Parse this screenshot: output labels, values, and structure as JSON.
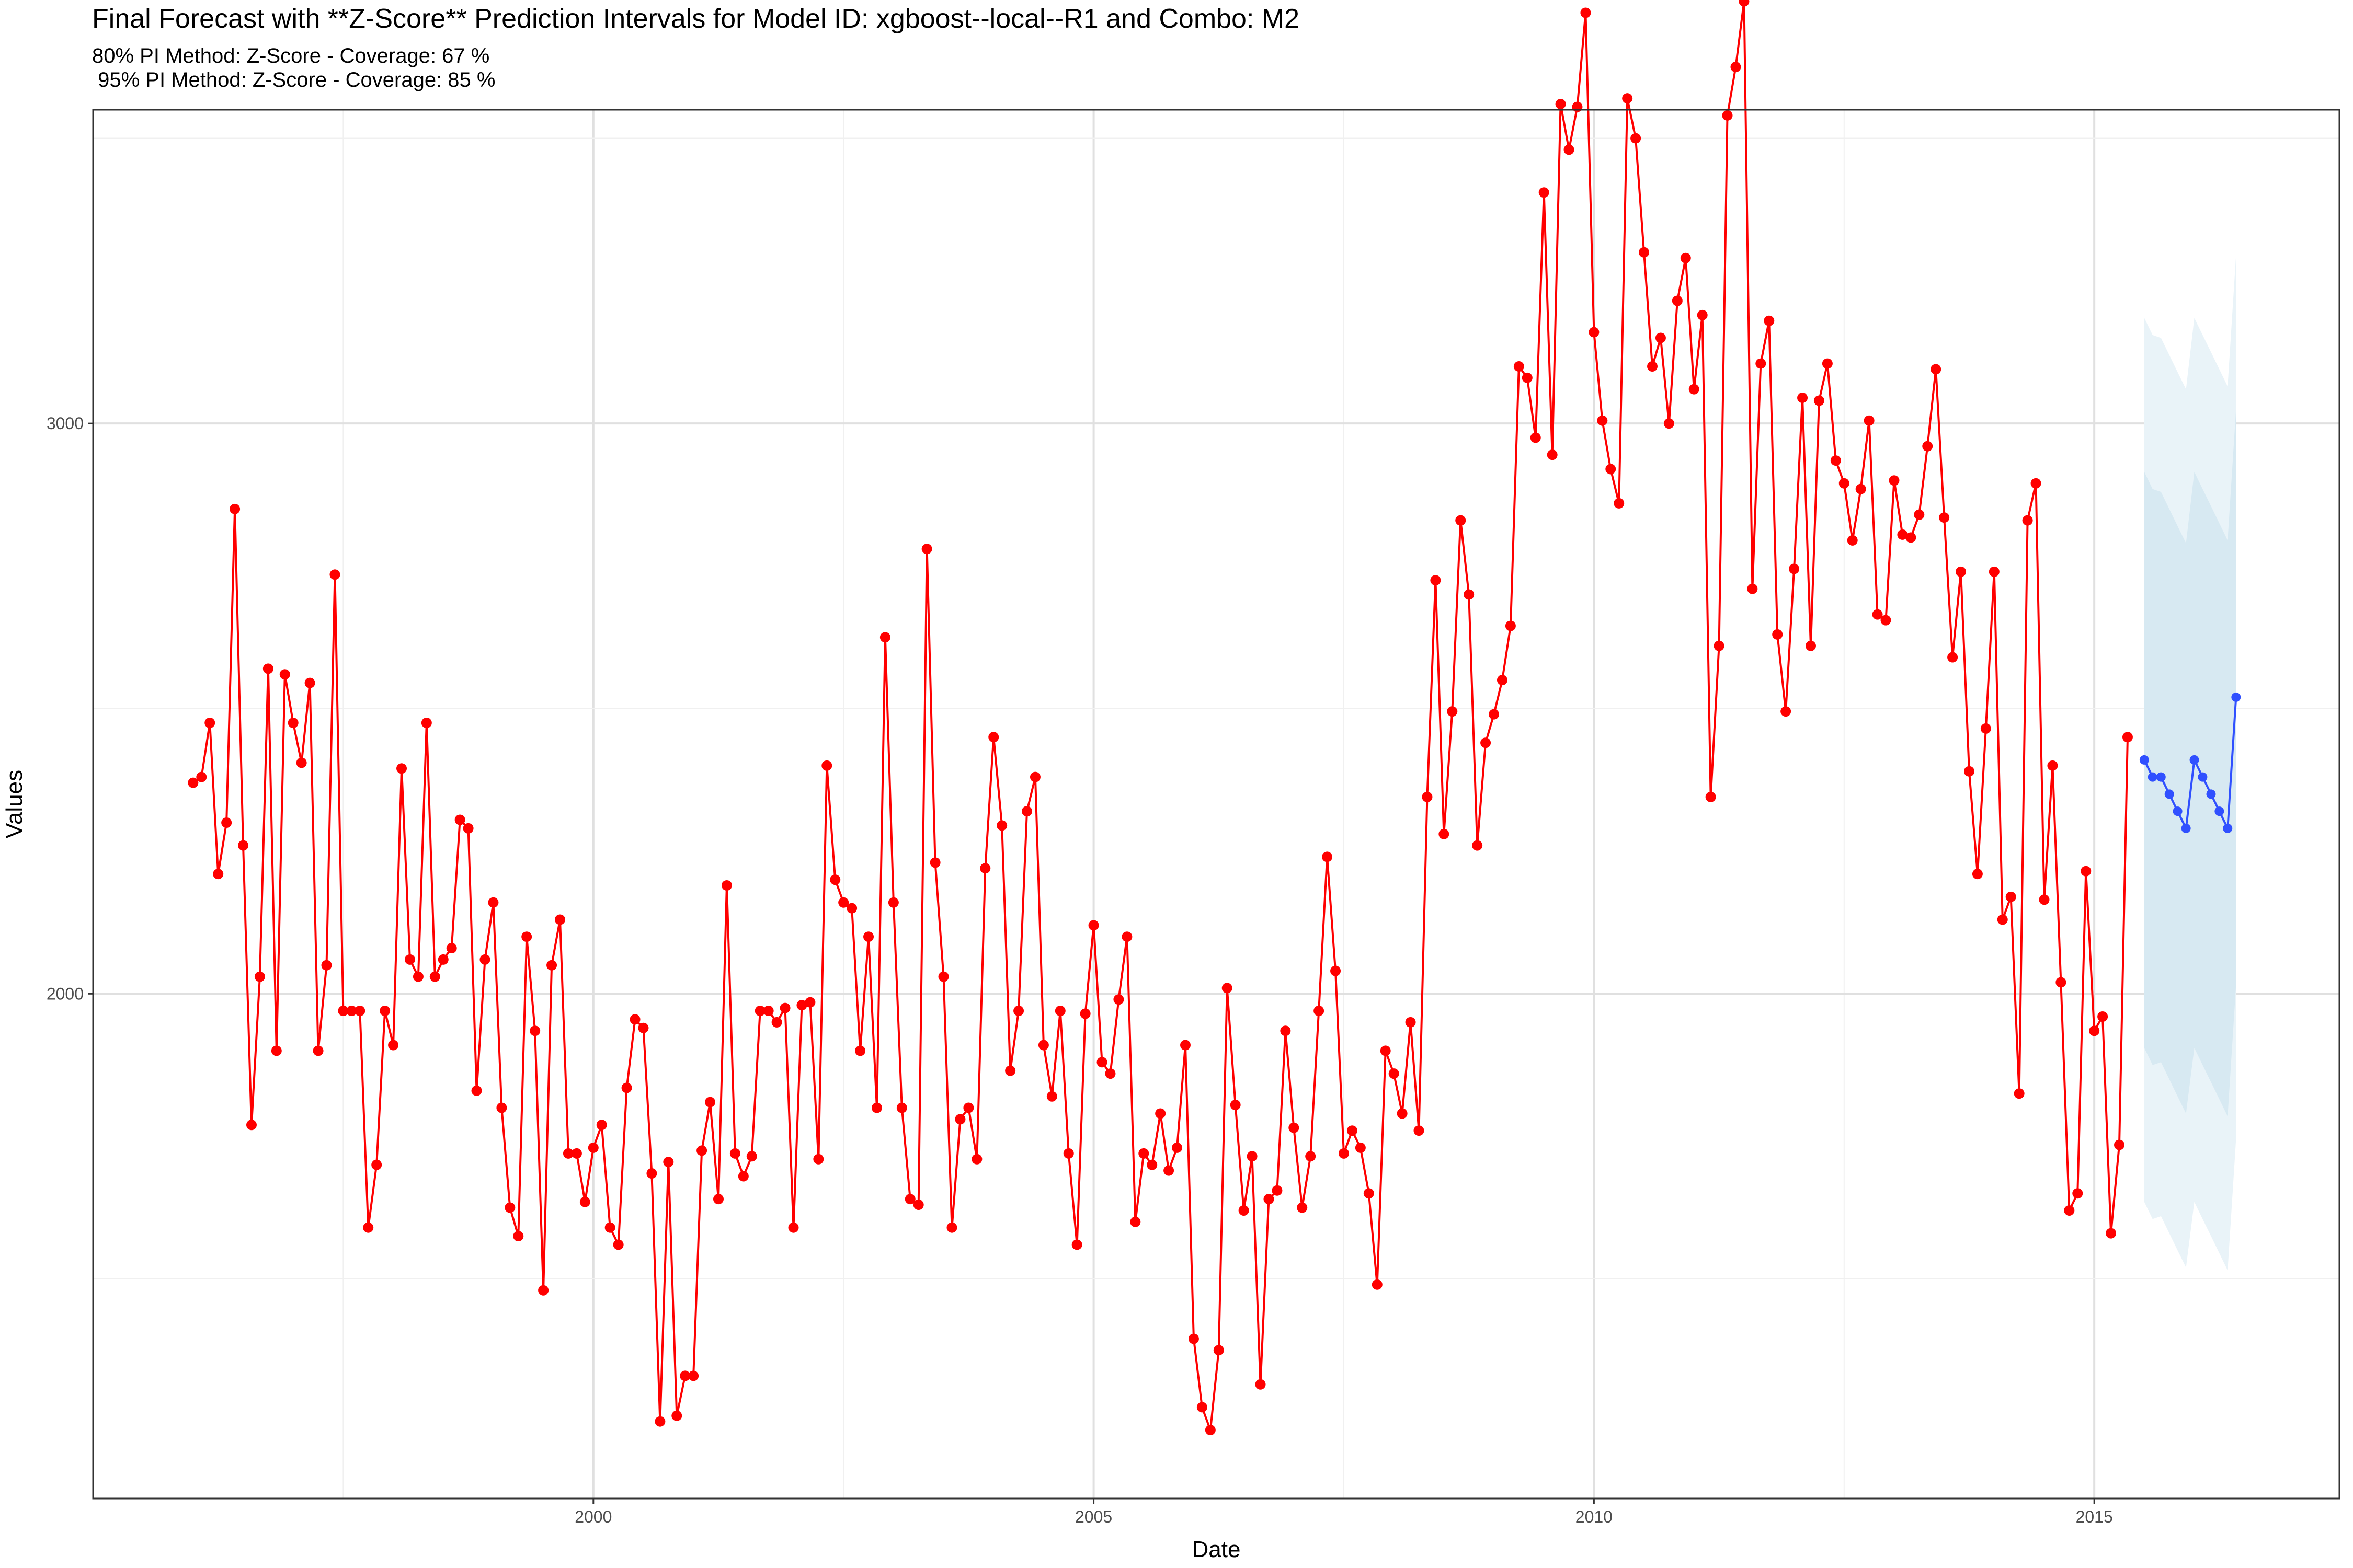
{
  "chart_data": {
    "type": "line",
    "title": "Final Forecast with **Z-Score** Prediction Intervals for Model ID: xgboost--local--R1 and Combo: M2",
    "subtitle_lines": [
      "80% PI Method: Z-Score - Coverage: 67 %",
      " 95% PI Method: Z-Score - Coverage: 85 %"
    ],
    "xlabel": "Date",
    "ylabel": "Values",
    "xlim": [
      1995.0,
      2017.45
    ],
    "ylim": [
      1115,
      3550
    ],
    "x_ticks": [
      2000,
      2005,
      2010,
      2015
    ],
    "y_ticks": [
      2000,
      3000
    ],
    "grid": true,
    "actual_start": 1996.0,
    "actual_color": "#ff0000",
    "forecast_color": "#3050ff",
    "pi80_color": "#d7e9f2",
    "pi95_color": "#e9f3f8",
    "series": [
      {
        "values": [
          2370,
          2380,
          2475,
          2210,
          2300,
          2850,
          2260,
          1770,
          2030,
          2570,
          1900,
          2560,
          2475,
          2405,
          2545,
          1900,
          2050,
          2735,
          1970,
          1970,
          1970,
          1590,
          1700,
          1970,
          1910,
          2395,
          2060,
          2030,
          2475,
          2030,
          2060,
          2080,
          2305,
          2290,
          1830,
          2060,
          2160,
          1800,
          1625,
          1575,
          2100,
          1935,
          1480,
          2050,
          2130,
          1720,
          1720,
          1635,
          1730,
          1770,
          1590,
          1560,
          1835,
          1955,
          1940,
          1685,
          1250,
          1705,
          1260,
          1330,
          1330,
          1725,
          1810,
          1640,
          2190,
          1720,
          1680,
          1715,
          1970,
          1970,
          1950,
          1975,
          1590,
          1980,
          1985,
          1710,
          2400,
          2200,
          2160,
          2150,
          1900,
          2100,
          1800,
          2625,
          2160,
          1800,
          1640,
          1630,
          2780,
          2230,
          2030,
          1590,
          1780,
          1800,
          1710,
          2220,
          2450,
          2295,
          1865,
          1970,
          2320,
          2380,
          1910,
          1820,
          1970,
          1720,
          1560,
          1965,
          2120,
          1880,
          1860,
          1990,
          2100,
          1600,
          1720,
          1700,
          1790,
          1690,
          1730,
          1910,
          1395,
          1275,
          1235,
          1375,
          2010,
          1805,
          1620,
          1715,
          1315,
          1640,
          1655,
          1935,
          1765,
          1625,
          1715,
          1970,
          2240,
          2040,
          1720,
          1760,
          1730,
          1650,
          1490,
          1900,
          1860,
          1790,
          1950,
          1760,
          2345,
          2725,
          2280,
          2495,
          2830,
          2700,
          2260,
          2440,
          2490,
          2550,
          2645,
          3100,
          3080,
          2975,
          3405,
          2945,
          3560,
          3480,
          3555,
          3720,
          3160,
          3005,
          2920,
          2860,
          3570,
          3500,
          3300,
          3100,
          3150,
          3000,
          3215,
          3290,
          3060,
          3190,
          2345,
          2610,
          3540,
          3625,
          3740,
          2710,
          3105,
          3180,
          2630,
          2495,
          2745,
          3045,
          2610,
          3040,
          3105,
          2935,
          2895,
          2795,
          2885,
          3005,
          2665,
          2655,
          2900,
          2805,
          2800,
          2840,
          2960,
          3095,
          2835,
          2590,
          2740,
          2390,
          2210,
          2465,
          2740,
          2130,
          2170,
          1825,
          2830,
          2895,
          2165,
          2400,
          2020,
          1620,
          1650,
          2215,
          1935,
          1960,
          1580,
          1735,
          2450
        ]
      },
      {
        "name": "forecast",
        "x": [
          2015.5,
          2015.583,
          2015.667,
          2015.75,
          2015.833,
          2015.917,
          2016.0,
          2016.083,
          2016.167,
          2016.25,
          2016.333,
          2016.417
        ],
        "values": [
          2410,
          2380,
          2380,
          2350,
          2320,
          2290,
          2410,
          2380,
          2350,
          2320,
          2290,
          2520
        ]
      }
    ],
    "pi80": {
      "x": [
        2015.5,
        2015.583,
        2015.667,
        2015.75,
        2015.833,
        2015.917,
        2016.0,
        2016.083,
        2016.167,
        2016.25,
        2016.333,
        2016.417
      ],
      "upper": [
        2915,
        2885,
        2880,
        2850,
        2820,
        2790,
        2915,
        2885,
        2855,
        2825,
        2795,
        3025
      ],
      "lower": [
        1905,
        1875,
        1880,
        1850,
        1820,
        1790,
        1905,
        1875,
        1845,
        1815,
        1785,
        2015
      ]
    },
    "pi95": {
      "x": [
        2015.5,
        2015.583,
        2015.667,
        2015.75,
        2015.833,
        2015.917,
        2016.0,
        2016.083,
        2016.167,
        2016.25,
        2016.333,
        2016.417
      ],
      "upper": [
        3185,
        3155,
        3150,
        3120,
        3090,
        3060,
        3185,
        3155,
        3125,
        3095,
        3065,
        3295
      ],
      "lower": [
        1635,
        1605,
        1610,
        1580,
        1550,
        1520,
        1635,
        1605,
        1575,
        1545,
        1515,
        1745
      ]
    }
  }
}
